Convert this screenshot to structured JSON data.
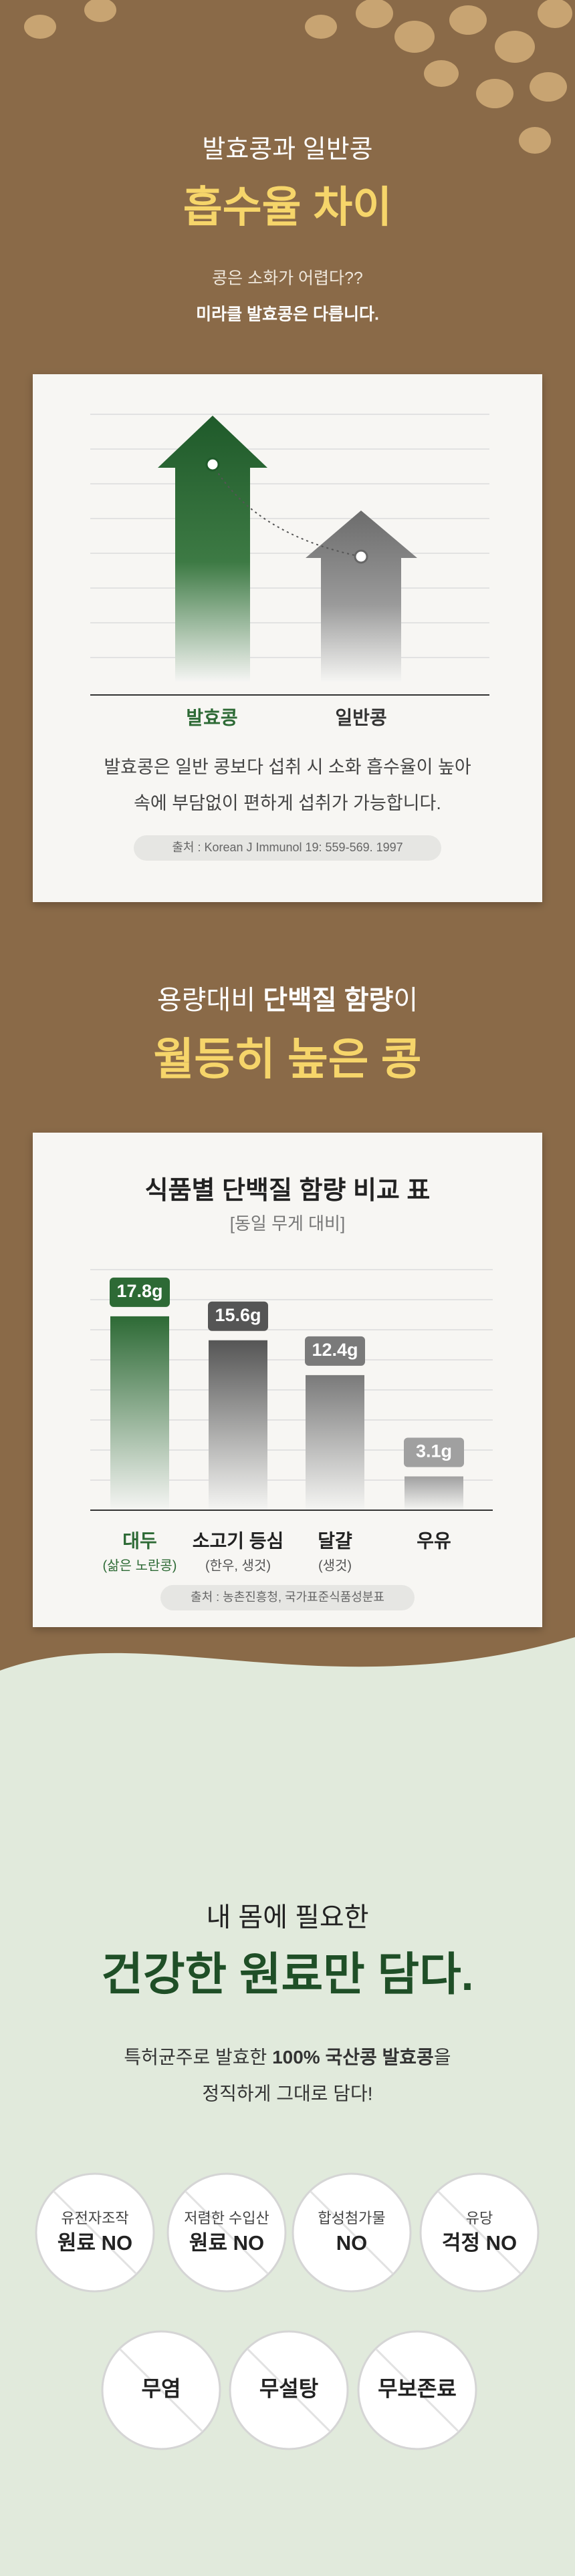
{
  "section1": {
    "subtitle": "발효콩과 일반콩",
    "title": "흡수율 차이",
    "lead": "콩은 소화가 어렵다??",
    "lead_bold": "미라클 발효콩은 다릅니다.",
    "labels": [
      "발효콩",
      "일반콩"
    ],
    "description": [
      "발효콩은 일반 콩보다 섭취 시 소화 흡수율이 높아",
      "속에 부담없이 편하게 섭취가 가능합니다."
    ],
    "source": "출처 : Korean J Immunol 19: 559-569. 1997"
  },
  "section2": {
    "heading_parts": [
      "용량대비 ",
      "단백질 함량",
      "이"
    ],
    "title": "월등히 높은 콩"
  },
  "chart_data": {
    "type": "bar",
    "title": "식품별 단백질 함량 비교 표",
    "subtitle": "[동일 무게 대비]",
    "categories": [
      "대두",
      "소고기 등심",
      "달걀",
      "우유"
    ],
    "category_notes": [
      "(삶은 노란콩)",
      "(한우, 생것)",
      "(생것)",
      null
    ],
    "values": [
      17.8,
      15.6,
      12.4,
      3.1
    ],
    "value_labels": [
      "17.8g",
      "15.6g",
      "12.4g",
      "3.1g"
    ],
    "colors": [
      "#2d6a35",
      "#555555",
      "#7a7a7a",
      "#a0a0a0"
    ],
    "ylim": [
      0,
      20
    ],
    "source": "출처 : 농촌진흥청, 국가표준식품성분표"
  },
  "section3": {
    "subtitle": "내 몸에 필요한",
    "title": "건강한 원료만 담다.",
    "intro_parts": [
      "특허균주로 발효한 ",
      "100% 국산콩 발효콩",
      "을"
    ],
    "intro_line2": "정직하게 그대로 담다!",
    "badges": [
      [
        "유전자조작",
        "원료 NO"
      ],
      [
        "저렴한 수입산",
        "원료 NO"
      ],
      [
        "합성첨가물",
        "NO"
      ],
      [
        "유당",
        "걱정 NO"
      ],
      [
        "무염"
      ],
      [
        "무설탕"
      ],
      [
        "무보존료"
      ]
    ]
  }
}
